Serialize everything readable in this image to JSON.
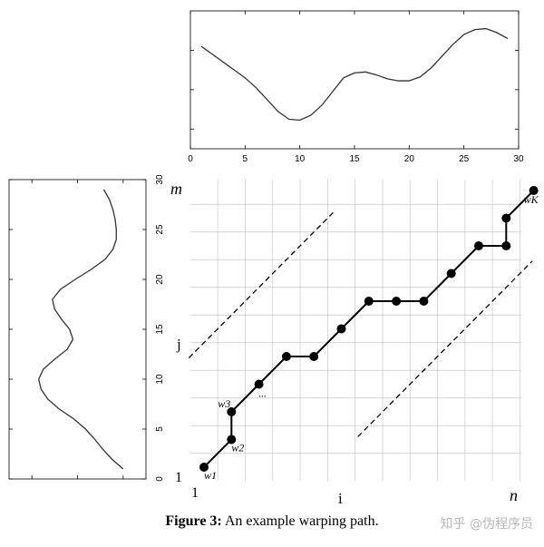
{
  "figure": {
    "caption_label": "Figure 3:",
    "caption_text": "An example warping path.",
    "watermark": "知乎 @伪程序员",
    "colors": {
      "line": "#333333",
      "grid": "#c8c8c8",
      "ink": "#000000"
    }
  },
  "chart_data": [
    {
      "type": "line",
      "name": "top-series",
      "x": [
        1,
        2,
        3,
        4,
        5,
        6,
        7,
        8,
        9,
        10,
        11,
        12,
        13,
        14,
        15,
        16,
        17,
        18,
        19,
        20,
        21,
        22,
        23,
        24,
        25,
        26,
        27,
        28,
        29
      ],
      "values": [
        0.84,
        0.76,
        0.68,
        0.6,
        0.52,
        0.42,
        0.3,
        0.18,
        0.1,
        0.09,
        0.14,
        0.24,
        0.38,
        0.52,
        0.57,
        0.58,
        0.55,
        0.51,
        0.49,
        0.49,
        0.53,
        0.62,
        0.74,
        0.86,
        0.96,
        1.01,
        1.02,
        0.98,
        0.92
      ],
      "xlim": [
        0,
        30
      ],
      "ylim": [
        -0.2,
        1.2
      ],
      "xticks": [
        "0",
        "5",
        "10",
        "15",
        "20",
        "25",
        "30"
      ],
      "xlabel": "",
      "ylabel": ""
    },
    {
      "type": "line",
      "name": "left-series",
      "orientation": "vertical",
      "index": [
        1,
        2,
        3,
        4,
        5,
        6,
        7,
        8,
        9,
        10,
        11,
        12,
        13,
        14,
        15,
        16,
        17,
        18,
        19,
        20,
        21,
        22,
        23,
        24,
        25,
        26,
        27,
        28,
        29
      ],
      "values": [
        0.2,
        0.3,
        0.38,
        0.45,
        0.53,
        0.63,
        0.76,
        0.86,
        0.92,
        0.94,
        0.9,
        0.8,
        0.69,
        0.64,
        0.67,
        0.74,
        0.8,
        0.82,
        0.75,
        0.62,
        0.48,
        0.36,
        0.29,
        0.26,
        0.26,
        0.27,
        0.29,
        0.32,
        0.37
      ],
      "ylim": [
        0,
        30
      ],
      "yticks": [
        "0",
        "5",
        "10",
        "15",
        "20",
        "25",
        "30"
      ],
      "xlim": [
        0,
        1.2
      ]
    },
    {
      "type": "scatter",
      "name": "warping-path",
      "x": [
        1,
        2,
        2,
        3,
        4,
        5,
        6,
        7,
        8,
        9,
        10,
        11,
        12,
        12,
        13
      ],
      "y": [
        1,
        2,
        3,
        4,
        5,
        5,
        6,
        7,
        7,
        7,
        8,
        9,
        9,
        10,
        11
      ],
      "grid": {
        "cols": 12,
        "rows": 11
      },
      "point_labels": [
        {
          "index": 0,
          "text": "w1"
        },
        {
          "index": 1,
          "text": "w2"
        },
        {
          "index": 2,
          "text": "w3"
        },
        {
          "index": 3,
          "text": "..."
        },
        {
          "index": 14,
          "text": "wK"
        }
      ],
      "band_offset": 4.5,
      "axis_labels": {
        "i": "i",
        "j": "j",
        "n": "n",
        "m": "m",
        "one_x": "1",
        "one_y": "1"
      }
    }
  ]
}
